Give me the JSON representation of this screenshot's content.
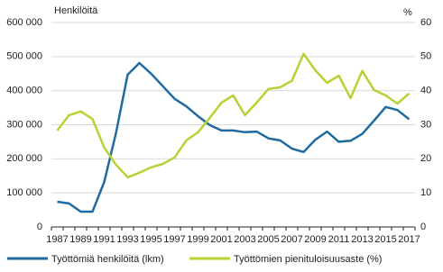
{
  "chart_data": {
    "type": "line",
    "y_label": "Henkilöitä",
    "y2_label": "%",
    "categories": [
      "1987",
      null,
      "1989",
      null,
      "1991",
      null,
      "1993",
      null,
      "1995",
      null,
      "1997",
      null,
      "1999",
      null,
      "2001",
      null,
      "2003",
      null,
      "2005",
      null,
      "2007",
      null,
      "2009",
      null,
      "2011",
      null,
      "2013",
      null,
      "2015",
      null,
      "2017"
    ],
    "series": [
      {
        "name": "Työttömiä henkilöitä (lkm)",
        "color": "#1f6aa0",
        "values": [
          74000,
          69000,
          45000,
          45000,
          132000,
          275000,
          447000,
          481000,
          450000,
          413000,
          376000,
          354000,
          325000,
          299000,
          283000,
          283000,
          278000,
          280000,
          260000,
          254000,
          230000,
          220000,
          256000,
          280000,
          250000,
          253000,
          273000,
          312000,
          352000,
          343000,
          316000
        ]
      },
      {
        "name": "Työttömien pienituloisuusaste (%)",
        "color": "#b5d334",
        "axis": "y2",
        "values": [
          28.3,
          32.8,
          33.9,
          31.7,
          23.3,
          18.3,
          14.6,
          15.9,
          17.5,
          18.5,
          20.4,
          25.4,
          27.8,
          32,
          36.5,
          38.6,
          32.8,
          36.5,
          40.5,
          41,
          42.9,
          50.8,
          46,
          42.3,
          44.4,
          37.8,
          45.8,
          40.2,
          38.6,
          36.2,
          39.2
        ]
      }
    ],
    "ylim": [
      0,
      600000
    ],
    "yticks": [
      0,
      {
        "value": 100000,
        "label": "100 000"
      },
      {
        "value": 200000,
        "label": "200 000"
      },
      {
        "value": 300000,
        "label": "300 000"
      },
      {
        "value": 400000,
        "label": "400 000"
      },
      {
        "value": 500000,
        "label": "500 000"
      },
      {
        "value": 600000,
        "label": "600 000"
      }
    ],
    "y2lim": [
      0,
      60
    ],
    "y2ticks": [
      0,
      10,
      20,
      30,
      40,
      50,
      60
    ],
    "grid": true,
    "legend": "bottom"
  }
}
